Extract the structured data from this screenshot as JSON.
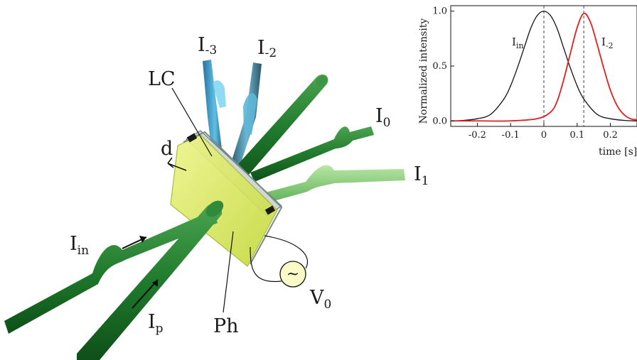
{
  "diagram": {
    "labels": {
      "lc": "LC",
      "d": "d",
      "ph": "Ph",
      "i_minus3": {
        "main": "I",
        "sub": "-3"
      },
      "i_minus2": {
        "main": "I",
        "sub": "-2"
      },
      "i_0": {
        "main": "I",
        "sub": "0"
      },
      "i_1": {
        "main": "I",
        "sub": "1"
      },
      "i_in": {
        "main": "I",
        "sub": "in"
      },
      "i_p": {
        "main": "I",
        "sub": "p"
      },
      "v_0": {
        "main": "V",
        "sub": "0"
      },
      "ac_source_symbol": "~"
    },
    "colors": {
      "beam_dark": "#1f7a2c",
      "beam_light": "#8ccf78",
      "beam_blue": "#4aa9d4",
      "beam_steel": "#3f7f9a",
      "cell_yellow": "#d6e85a",
      "red_curve": "#e02020"
    }
  },
  "chart_data": {
    "type": "line",
    "xlabel": "time [s]",
    "ylabel": "Normalized intensity",
    "xlim": [
      -0.28,
      0.28
    ],
    "ylim": [
      -0.05,
      1.05
    ],
    "xticks": [
      -0.2,
      -0.1,
      0.0,
      0.1,
      0.2
    ],
    "xtick_labels": [
      "-0.2",
      "-0.1",
      "0",
      "0.1",
      "0.2"
    ],
    "yticks": [
      0.0,
      0.5,
      1.0
    ],
    "ytick_labels": [
      "0.0",
      "0.5",
      "1.0"
    ],
    "vlines": [
      0.0,
      0.12
    ],
    "series": [
      {
        "color": "#111111",
        "label": {
          "main": "I",
          "sub": "in"
        },
        "x": [
          -0.28,
          -0.24,
          -0.2,
          -0.16,
          -0.12,
          -0.1,
          -0.08,
          -0.06,
          -0.04,
          -0.02,
          0.0,
          0.02,
          0.04,
          0.06,
          0.08,
          0.1,
          0.12,
          0.16,
          0.2,
          0.24,
          0.28
        ],
        "y": [
          0.0,
          0.005,
          0.02,
          0.06,
          0.2,
          0.32,
          0.48,
          0.66,
          0.84,
          0.96,
          1.0,
          0.96,
          0.84,
          0.66,
          0.48,
          0.32,
          0.2,
          0.06,
          0.02,
          0.005,
          0.0
        ]
      },
      {
        "color": "#e02020",
        "label": {
          "main": "I",
          "sub": "-2"
        },
        "x": [
          -0.28,
          -0.2,
          -0.1,
          -0.02,
          0.02,
          0.04,
          0.06,
          0.08,
          0.1,
          0.12,
          0.14,
          0.16,
          0.18,
          0.2,
          0.22,
          0.24,
          0.26,
          0.28
        ],
        "y": [
          0.0,
          0.0,
          0.0,
          0.02,
          0.08,
          0.18,
          0.38,
          0.62,
          0.85,
          0.98,
          0.9,
          0.7,
          0.48,
          0.28,
          0.14,
          0.06,
          0.02,
          0.01
        ]
      }
    ]
  }
}
